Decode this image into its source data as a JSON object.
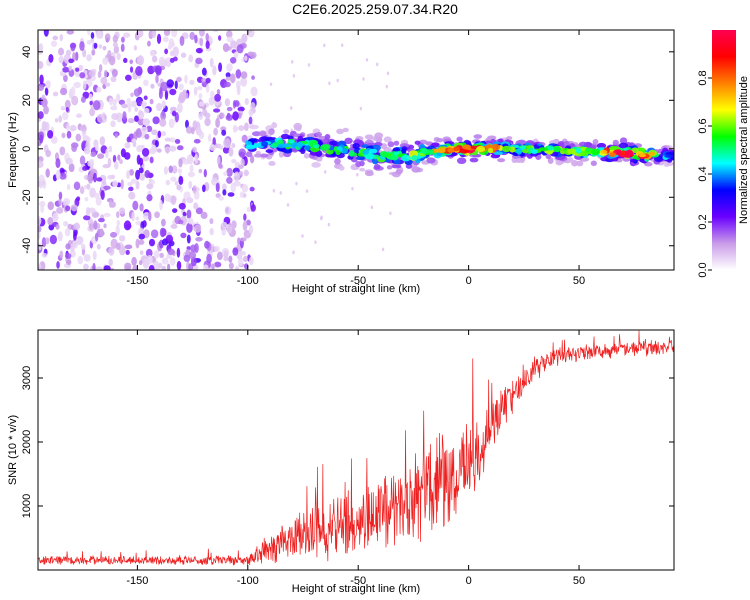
{
  "title": "C2E6.2025.259.07.34.R20",
  "chart_data": [
    {
      "type": "heatmap",
      "panel": "spectrogram",
      "xlabel": "Height of straight line (km)",
      "ylabel": "Frequency (Hz)",
      "xlim": [
        -195,
        93
      ],
      "ylim": [
        -50,
        49
      ],
      "xticks": [
        -150,
        -100,
        -50,
        0,
        50
      ],
      "yticks": [
        -40,
        -20,
        0,
        20,
        40
      ],
      "colorbar": {
        "label": "Normalized spectral amplitude",
        "range": [
          0,
          1
        ],
        "ticks": [
          0.0,
          0.2,
          0.4,
          0.6,
          0.8
        ],
        "colormap": [
          "#ffffff",
          "#c99be8",
          "#6a00ff",
          "#0000ff",
          "#00ffff",
          "#00ff00",
          "#ffff00",
          "#ff8000",
          "#ff0000",
          "#ff0050"
        ]
      },
      "features": {
        "noise_region": {
          "x_range": [
            -195,
            -97
          ],
          "freq_range": [
            -50,
            49
          ],
          "amplitude": "low (0.05-0.25)"
        },
        "signal_band": [
          {
            "x": -100,
            "center_hz": 2,
            "amplitude": 0.4
          },
          {
            "x": -80,
            "center_hz": 2,
            "amplitude": 0.5
          },
          {
            "x": -60,
            "center_hz": 0,
            "amplitude": 0.5
          },
          {
            "x": -40,
            "center_hz": -3,
            "amplitude": 0.55
          },
          {
            "x": -20,
            "center_hz": -2,
            "amplitude": 0.6
          },
          {
            "x": -5,
            "center_hz": 0,
            "amplitude": 0.85
          },
          {
            "x": 0,
            "center_hz": 0,
            "amplitude": 0.95
          },
          {
            "x": 20,
            "center_hz": 0,
            "amplitude": 0.55
          },
          {
            "x": 50,
            "center_hz": -1,
            "amplitude": 0.6
          },
          {
            "x": 75,
            "center_hz": -2,
            "amplitude": 1.0
          },
          {
            "x": 93,
            "center_hz": -3,
            "amplitude": 0.3
          }
        ]
      }
    },
    {
      "type": "line",
      "panel": "snr",
      "xlabel": "Height of straight line (km)",
      "ylabel": "SNR (10 * v/v)",
      "xlim": [
        -195,
        93
      ],
      "ylim": [
        0,
        3750
      ],
      "xticks": [
        -150,
        -100,
        -50,
        0,
        50
      ],
      "yticks": [
        1000,
        2000,
        3000
      ],
      "color": "#ee2020",
      "series": [
        {
          "name": "SNR",
          "x": [
            -195,
            -150,
            -100,
            -90,
            -80,
            -70,
            -60,
            -50,
            -40,
            -30,
            -20,
            -10,
            0,
            5,
            10,
            20,
            30,
            40,
            50,
            60,
            70,
            80,
            93
          ],
          "y": [
            150,
            150,
            150,
            350,
            500,
            600,
            650,
            750,
            900,
            1050,
            1200,
            1400,
            1600,
            1900,
            2300,
            2750,
            3150,
            3350,
            3400,
            3420,
            3450,
            3470,
            3480
          ],
          "spread": [
            70,
            70,
            90,
            250,
            350,
            450,
            500,
            550,
            650,
            750,
            800,
            800,
            750,
            650,
            450,
            350,
            200,
            160,
            130,
            130,
            130,
            130,
            130
          ]
        }
      ]
    }
  ]
}
